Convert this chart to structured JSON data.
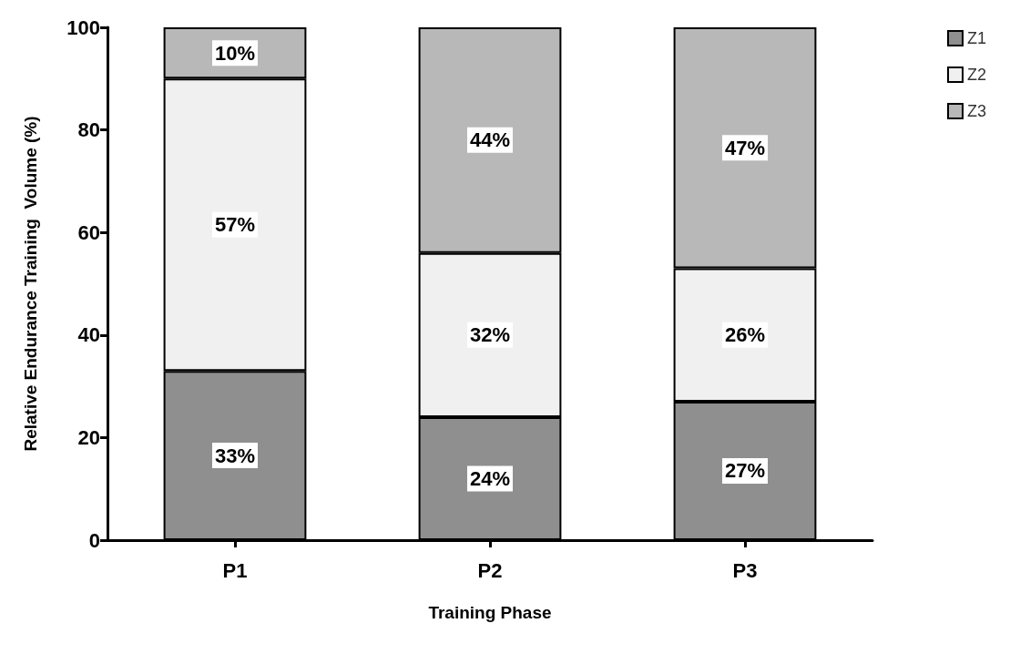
{
  "chart_data": {
    "type": "bar",
    "stacked": true,
    "xlabel": "Training Phase",
    "ylabel": "Relative Endurance Training  Volume (%)",
    "categories": [
      "P1",
      "P2",
      "P3"
    ],
    "series": [
      {
        "name": "Z1",
        "color": "#8f8f8f",
        "values": [
          33,
          24,
          27
        ],
        "value_labels": [
          "33%",
          "24%",
          "27%"
        ]
      },
      {
        "name": "Z2",
        "color": "#f0f0f0",
        "values": [
          57,
          32,
          26
        ],
        "value_labels": [
          "57%",
          "32%",
          "26%"
        ]
      },
      {
        "name": "Z3",
        "color": "#b8b8b8",
        "values": [
          10,
          44,
          47
        ],
        "value_labels": [
          "10%",
          "44%",
          "47%"
        ]
      }
    ],
    "ylim": [
      0,
      100
    ],
    "yticks": [
      0,
      20,
      40,
      60,
      80,
      100
    ],
    "grid": false,
    "legend": "top right"
  }
}
